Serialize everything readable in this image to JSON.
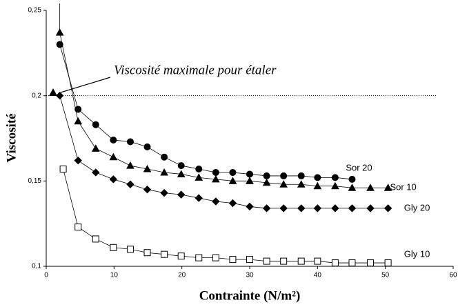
{
  "chart_data": {
    "type": "line",
    "x_label": "Contrainte (N/m²)",
    "y_label": "Viscosité",
    "annotation": "Viscosité maximale pour étaler",
    "reference_line": 0.2,
    "xlim": [
      0,
      60
    ],
    "xticks": [
      0,
      10,
      20,
      30,
      40,
      50,
      60
    ],
    "ylim": [
      0.1,
      0.25
    ],
    "yticks": [
      {
        "value": 0.1,
        "label": "0,1"
      },
      {
        "value": 0.15,
        "label": "0,15"
      },
      {
        "value": 0.2,
        "label": "0,2"
      },
      {
        "value": 0.25,
        "label": "0,25"
      }
    ],
    "series": [
      {
        "name": "Sor 20",
        "color": "#000000",
        "marker": "circle",
        "x": [
          2,
          4.7,
          7.3,
          9.9,
          12.4,
          14.9,
          17.4,
          19.9,
          22.5,
          25,
          27.5,
          30,
          32.5,
          35,
          37.6,
          40,
          42.6,
          45.1
        ],
        "values": [
          0.23,
          0.192,
          0.183,
          0.174,
          0.173,
          0.17,
          0.164,
          0.159,
          0.157,
          0.155,
          0.155,
          0.154,
          0.153,
          0.153,
          0.153,
          0.152,
          0.152,
          0.151
        ]
      },
      {
        "name": "Sor 10",
        "color": "#000000",
        "marker": "triangle",
        "x": [
          2,
          4.7,
          7.3,
          9.9,
          12.4,
          14.9,
          17.4,
          19.9,
          22.5,
          25,
          27.5,
          30,
          32.5,
          35,
          37.6,
          40,
          42.6,
          45.1,
          47.8,
          50.4
        ],
        "values": [
          0.237,
          0.185,
          0.169,
          0.164,
          0.159,
          0.157,
          0.155,
          0.154,
          0.152,
          0.151,
          0.15,
          0.15,
          0.149,
          0.148,
          0.148,
          0.147,
          0.147,
          0.146,
          0.146,
          0.146
        ]
      },
      {
        "name": "Gly 20",
        "color": "#000000",
        "marker": "diamond",
        "x": [
          2,
          4.7,
          7.3,
          9.9,
          12.4,
          14.9,
          17.4,
          19.9,
          22.5,
          25,
          27.5,
          30,
          32.5,
          35,
          37.6,
          40,
          42.6,
          45.1,
          47.8,
          50.4
        ],
        "values": [
          0.2,
          0.162,
          0.155,
          0.151,
          0.148,
          0.145,
          0.143,
          0.142,
          0.14,
          0.138,
          0.137,
          0.135,
          0.134,
          0.134,
          0.134,
          0.134,
          0.134,
          0.134,
          0.134,
          0.134
        ]
      },
      {
        "name": "Gly 10",
        "color": "#000000",
        "marker": "square",
        "x": [
          2.5,
          4.7,
          7.3,
          9.9,
          12.4,
          14.9,
          17.4,
          19.9,
          22.5,
          25,
          27.5,
          30,
          32.5,
          35,
          37.6,
          40,
          42.6,
          45.1,
          47.8,
          50.4
        ],
        "values": [
          0.157,
          0.123,
          0.116,
          0.111,
          0.11,
          0.108,
          0.107,
          0.106,
          0.105,
          0.105,
          0.104,
          0.104,
          0.103,
          0.103,
          0.103,
          0.103,
          0.102,
          0.102,
          0.102,
          0.102
        ]
      }
    ]
  }
}
